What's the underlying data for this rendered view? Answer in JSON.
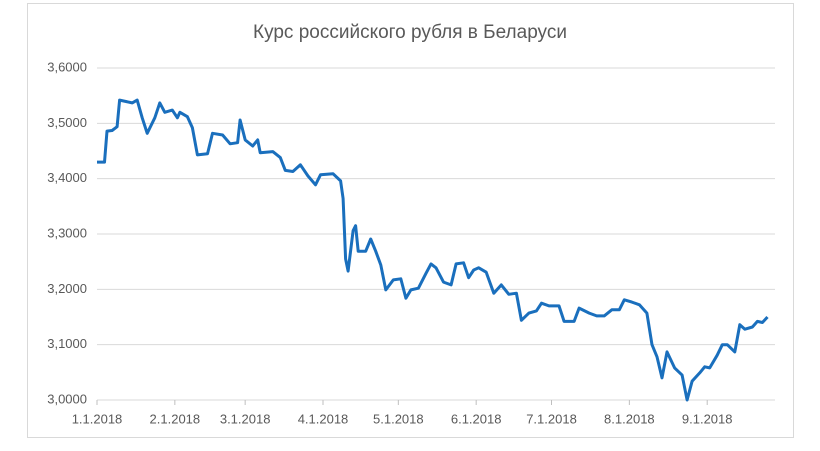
{
  "chart_data": {
    "type": "line",
    "title": "Курс российского рубля в Беларуси",
    "x": [
      "1.1.2018",
      "1.4.2018",
      "1.5.2018",
      "1.7.2018",
      "1.9.2018",
      "1.10.2018",
      "1.15.2018",
      "1.17.2018",
      "1.19.2018",
      "1.21.2018",
      "1.24.2018",
      "1.26.2018",
      "1.28.2018",
      "1.31.2018",
      "2.2.2018",
      "2.3.2018",
      "2.6.2018",
      "2.8.2018",
      "2.10.2018",
      "2.14.2018",
      "2.16.2018",
      "2.20.2018",
      "2.23.2018",
      "2.26.2018",
      "2.27.2018",
      "3.1.2018",
      "3.4.2018",
      "3.6.2018",
      "3.7.2018",
      "3.12.2018",
      "3.15.2018",
      "3.17.2018",
      "3.20.2018",
      "3.23.2018",
      "3.26.2018",
      "3.29.2018",
      "3.31.2018",
      "4.5.2018",
      "4.8.2018",
      "4.9.2018",
      "4.10.2018",
      "4.11.2018",
      "4.13.2018",
      "4.14.2018",
      "4.15.2018",
      "4.18.2018",
      "4.20.2018",
      "4.22.2018",
      "4.24.2018",
      "4.26.2018",
      "4.29.2018",
      "5.2.2018",
      "5.4.2018",
      "5.6.2018",
      "5.9.2018",
      "5.12.2018",
      "5.14.2018",
      "5.16.2018",
      "5.19.2018",
      "5.22.2018",
      "5.24.2018",
      "5.27.2018",
      "5.29.2018",
      "5.31.2018",
      "6.2.2018",
      "6.5.2018",
      "6.8.2018",
      "6.11.2018",
      "6.14.2018",
      "6.17.2018",
      "6.19.2018",
      "6.22.2018",
      "6.25.2018",
      "6.27.2018",
      "6.30.2018",
      "7.4.2018",
      "7.6.2018",
      "7.10.2018",
      "7.12.2018",
      "7.16.2018",
      "7.19.2018",
      "7.22.2018",
      "7.25.2018",
      "7.28.2018",
      "7.30.2018",
      "8.2.2018",
      "8.5.2018",
      "8.8.2018",
      "8.10.2018",
      "8.12.2018",
      "8.14.2018",
      "8.16.2018",
      "8.19.2018",
      "8.22.2018",
      "8.24.2018",
      "8.26.2018",
      "8.29.2018",
      "8.31.2018",
      "9.2.2018",
      "9.5.2018",
      "9.7.2018",
      "9.9.2018",
      "9.12.2018",
      "9.14.2018",
      "9.16.2018",
      "9.19.2018",
      "9.21.2018",
      "9.23.2018",
      "9.25.2018"
    ],
    "series": [
      {
        "color": "#1a6fbd",
        "values": [
          3.43,
          3.43,
          3.486,
          3.487,
          3.494,
          3.542,
          3.537,
          3.542,
          3.51,
          3.482,
          3.51,
          3.537,
          3.52,
          3.524,
          3.51,
          3.52,
          3.512,
          3.492,
          3.443,
          3.445,
          3.482,
          3.479,
          3.463,
          3.465,
          3.506,
          3.47,
          3.459,
          3.47,
          3.447,
          3.449,
          3.438,
          3.415,
          3.413,
          3.425,
          3.405,
          3.389,
          3.407,
          3.409,
          3.396,
          3.364,
          3.255,
          3.233,
          3.306,
          3.315,
          3.269,
          3.269,
          3.291,
          3.269,
          3.244,
          3.199,
          3.217,
          3.219,
          3.184,
          3.199,
          3.202,
          3.229,
          3.246,
          3.239,
          3.213,
          3.208,
          3.246,
          3.248,
          3.221,
          3.235,
          3.239,
          3.231,
          3.193,
          3.208,
          3.191,
          3.193,
          3.144,
          3.157,
          3.161,
          3.175,
          3.17,
          3.17,
          3.142,
          3.142,
          3.166,
          3.157,
          3.152,
          3.152,
          3.163,
          3.163,
          3.181,
          3.177,
          3.172,
          3.157,
          3.1,
          3.078,
          3.04,
          3.087,
          3.058,
          3.045,
          3.0,
          3.034,
          3.049,
          3.06,
          3.058,
          3.081,
          3.1,
          3.1,
          3.087,
          3.136,
          3.128,
          3.132,
          3.142,
          3.14,
          3.15
        ]
      }
    ],
    "xlim": [
      "1.1.2018",
      "9.28.2018"
    ],
    "xticks": [
      "1.1.2018",
      "2.1.2018",
      "3.1.2018",
      "4.1.2018",
      "5.1.2018",
      "6.1.2018",
      "7.1.2018",
      "8.1.2018",
      "9.1.2018"
    ],
    "ylim": [
      3.0,
      3.6
    ],
    "yticks": [
      {
        "value": 3.0,
        "label": "3,0000"
      },
      {
        "value": 3.1,
        "label": "3,1000"
      },
      {
        "value": 3.2,
        "label": "3,2000"
      },
      {
        "value": 3.3,
        "label": "3,3000"
      },
      {
        "value": 3.4,
        "label": "3,4000"
      },
      {
        "value": 3.5,
        "label": "3,5000"
      },
      {
        "value": 3.6,
        "label": "3,6000"
      }
    ],
    "grid": true
  }
}
